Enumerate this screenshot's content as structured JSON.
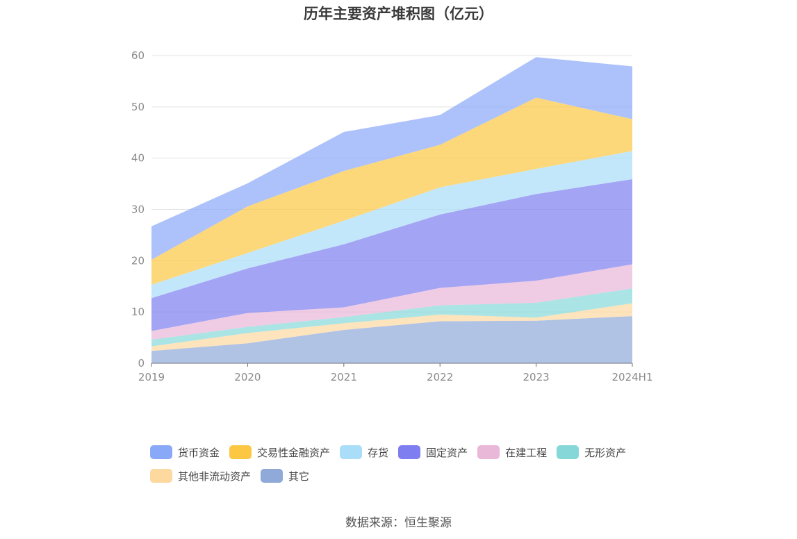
{
  "title": "历年主要资产堆积图（亿元）",
  "source": "数据来源：恒生聚源",
  "chart_data": {
    "type": "area",
    "stacked": true,
    "title": "历年主要资产堆积图（亿元）",
    "categories": [
      "2019",
      "2020",
      "2021",
      "2022",
      "2023",
      "2024H1"
    ],
    "ylim": [
      0,
      60
    ],
    "yticks": [
      0,
      10,
      20,
      30,
      40,
      50,
      60
    ],
    "grid": true,
    "legend_position": "bottom",
    "series": [
      {
        "name": "其它",
        "color": "#8fa9d8",
        "values": [
          2.4,
          3.9,
          6.5,
          8.2,
          8.3,
          9.2
        ]
      },
      {
        "name": "其他非流动资产",
        "color": "#fdd9a0",
        "values": [
          0.9,
          2.0,
          1.3,
          1.3,
          0.6,
          2.5
        ]
      },
      {
        "name": "无形资产",
        "color": "#86d8d8",
        "values": [
          1.3,
          1.2,
          1.2,
          1.8,
          2.9,
          2.9
        ]
      },
      {
        "name": "在建工程",
        "color": "#e9b7d8",
        "values": [
          1.7,
          2.7,
          1.9,
          3.4,
          4.3,
          4.7
        ]
      },
      {
        "name": "固定资产",
        "color": "#7e7ef0",
        "values": [
          6.4,
          8.7,
          12.3,
          14.3,
          16.9,
          16.6
        ]
      },
      {
        "name": "存货",
        "color": "#a9ddf8",
        "values": [
          2.6,
          3.0,
          4.6,
          5.3,
          4.9,
          5.5
        ]
      },
      {
        "name": "交易性金融资产",
        "color": "#fcc843",
        "values": [
          4.9,
          9.1,
          9.7,
          8.3,
          13.9,
          6.2
        ]
      },
      {
        "name": "货币资金",
        "color": "#8aa8f8",
        "values": [
          6.5,
          4.5,
          7.6,
          5.8,
          7.9,
          10.3
        ]
      }
    ]
  },
  "legend": [
    {
      "name": "货币资金",
      "color": "#8aa8f8"
    },
    {
      "name": "交易性金融资产",
      "color": "#fcc843"
    },
    {
      "name": "存货",
      "color": "#a9ddf8"
    },
    {
      "name": "固定资产",
      "color": "#7e7ef0"
    },
    {
      "name": "在建工程",
      "color": "#e9b7d8"
    },
    {
      "name": "无形资产",
      "color": "#86d8d8"
    },
    {
      "name": "其他非流动资产",
      "color": "#fdd9a0"
    },
    {
      "name": "其它",
      "color": "#8fa9d8"
    }
  ]
}
